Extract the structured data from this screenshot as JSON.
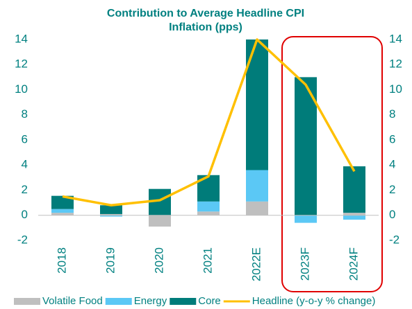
{
  "chart_data": {
    "type": "bar",
    "title": "Contribution to Average Headline CPI Inflation (pps)",
    "categories": [
      "2018",
      "2019",
      "2020",
      "2021",
      "2022E",
      "2023F",
      "2024F"
    ],
    "stacked": true,
    "series": [
      {
        "name": "Volatile Food",
        "color": "#bfbfbf",
        "values": [
          0.2,
          0.1,
          -0.9,
          0.3,
          1.1,
          0,
          0.2
        ]
      },
      {
        "name": "Energy",
        "color": "#5bc8f5",
        "values": [
          0.3,
          -0.1,
          0,
          0.8,
          2.5,
          -0.6,
          -0.35
        ]
      },
      {
        "name": "Core",
        "color": "#007c7a",
        "values": [
          1.05,
          0.7,
          2.1,
          2.1,
          10.4,
          11.0,
          3.7
        ]
      },
      {
        "name": "Headline (y-o-y % change)",
        "type": "line",
        "axis": "y2",
        "color": "#ffc000",
        "values": [
          1.5,
          0.8,
          1.2,
          3.1,
          14,
          10.4,
          3.5
        ]
      }
    ],
    "ylim": [
      -2,
      14
    ],
    "yticks": [
      -2,
      0,
      2,
      4,
      6,
      8,
      10,
      12,
      14
    ],
    "y2lim": [
      -2,
      14
    ],
    "y2ticks": [
      -2,
      0,
      2,
      4,
      6,
      8,
      10,
      12,
      14
    ],
    "grid": false,
    "legend": "bottom"
  }
}
